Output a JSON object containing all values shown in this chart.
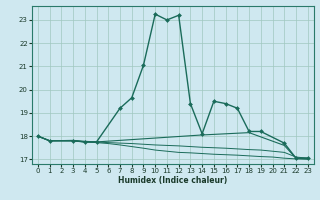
{
  "title": "",
  "xlabel": "Humidex (Indice chaleur)",
  "bg_color": "#cfe8f0",
  "grid_color": "#a0c8c0",
  "line_color": "#1a6b5a",
  "xlim": [
    -0.5,
    23.5
  ],
  "ylim": [
    16.8,
    23.6
  ],
  "yticks": [
    17,
    18,
    19,
    20,
    21,
    22,
    23
  ],
  "xticks": [
    0,
    1,
    2,
    3,
    4,
    5,
    6,
    7,
    8,
    9,
    10,
    11,
    12,
    13,
    14,
    15,
    16,
    17,
    18,
    19,
    20,
    21,
    22,
    23
  ],
  "series": [
    {
      "x": [
        0,
        1,
        3,
        4,
        5,
        7,
        8,
        9,
        10,
        11,
        12,
        13,
        14,
        15,
        16,
        17,
        18,
        19,
        21,
        22,
        23
      ],
      "y": [
        18.0,
        17.8,
        17.8,
        17.75,
        17.75,
        19.2,
        19.65,
        21.05,
        23.25,
        23.0,
        23.2,
        19.4,
        18.1,
        19.5,
        19.4,
        19.2,
        18.2,
        18.2,
        17.7,
        17.05,
        17.05
      ],
      "marker": "D",
      "markersize": 2.0,
      "linewidth": 1.0
    },
    {
      "x": [
        0,
        1,
        3,
        4,
        5,
        14,
        18,
        21,
        22,
        23
      ],
      "y": [
        18.0,
        17.8,
        17.8,
        17.75,
        17.75,
        18.05,
        18.15,
        17.6,
        17.05,
        17.05
      ],
      "marker": null,
      "markersize": 0,
      "linewidth": 0.8
    },
    {
      "x": [
        0,
        1,
        3,
        4,
        5,
        6,
        7,
        8,
        9,
        10,
        11,
        12,
        13,
        14,
        15,
        16,
        17,
        18,
        19,
        20,
        21,
        22,
        23
      ],
      "y": [
        18.0,
        17.8,
        17.8,
        17.75,
        17.72,
        17.68,
        17.62,
        17.55,
        17.48,
        17.4,
        17.35,
        17.3,
        17.28,
        17.25,
        17.22,
        17.2,
        17.18,
        17.15,
        17.12,
        17.1,
        17.05,
        17.02,
        17.0
      ],
      "marker": null,
      "markersize": 0,
      "linewidth": 0.7
    },
    {
      "x": [
        0,
        1,
        3,
        4,
        5,
        6,
        7,
        8,
        9,
        10,
        11,
        12,
        13,
        14,
        15,
        16,
        17,
        18,
        19,
        20,
        21,
        22,
        23
      ],
      "y": [
        18.0,
        17.8,
        17.82,
        17.78,
        17.75,
        17.72,
        17.7,
        17.68,
        17.65,
        17.62,
        17.6,
        17.58,
        17.55,
        17.52,
        17.5,
        17.48,
        17.45,
        17.42,
        17.4,
        17.35,
        17.3,
        17.1,
        17.05
      ],
      "marker": null,
      "markersize": 0,
      "linewidth": 0.7
    }
  ]
}
